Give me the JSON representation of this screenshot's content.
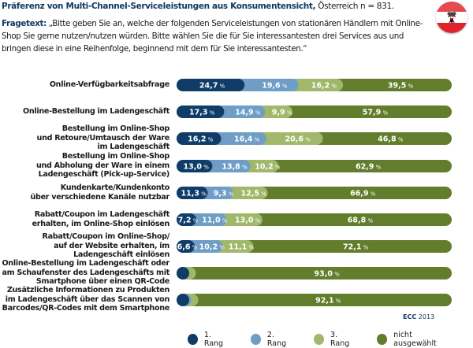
{
  "header": {
    "title_bold": "Präferenz von Multi-Channel-Serviceleistungen aus Konsumentensicht,",
    "title_normal": "Österreich n = 831.",
    "question_label": "Fragetext:",
    "question_text": "„Bitte geben Sie an, welche der folgenden Serviceleistungen von stationären Händlern mit Online-Shop Sie gerne nutzen/nutzen würden. Bitte wählen Sie die für Sie interessantesten drei Services aus und bringen diese in eine Reihenfolge, beginnend mit dem für Sie interessantesten.“",
    "flag_icon": "austria-flag-icon"
  },
  "source": {
    "bold": "ECC",
    "year": "2013"
  },
  "colors": {
    "rang1": "#0f3d68",
    "rang2": "#6f9dc6",
    "rang3": "#a1b86a",
    "nicht": "#627d2c"
  },
  "chart_data": {
    "type": "bar",
    "orientation": "horizontal-stacked-100",
    "title": "Präferenz von Multi-Channel-Serviceleistungen aus Konsumentensicht, Österreich n = 831.",
    "unit": "%",
    "xlim": [
      0,
      100
    ],
    "legend_position": "bottom",
    "categories": [
      "Online-Verfügbarkeitsabfrage",
      "Online-Bestellung im Ladengeschäft",
      "Bestellung im Online-Shop und Retoure/Umtausch der Ware im Ladengeschäft",
      "Bestellung im Online-Shop und Abholung der Ware in einem Ladengeschäft (Pick-up-Service)",
      "Kundenkarte/Kundenkonto über verschiedene Kanäle nutzbar",
      "Rabatt/Coupon im Ladengeschäft erhalten, im Online-Shop einlösen",
      "Rabatt/Coupon im Online-Shop/ auf der Website erhalten, im Ladengeschäft einlösen",
      "Online-Bestellung im Ladengeschäft oder am Schaufenster des Ladengeschäfts mit Smartphone über einen QR-Code",
      "Zusätzliche Informationen zu Produkten im Ladengeschäft über das Scannen von Barcodes/QR-Codes mit dem Smartphone"
    ],
    "category_lines": [
      [
        "Online-Verfügbarkeitsabfrage"
      ],
      [
        "Online-Bestellung im Ladengeschäft"
      ],
      [
        "Bestellung im Online-Shop",
        "und Retoure/Umtausch der Ware",
        "im Ladengeschäft"
      ],
      [
        "Bestellung im Online-Shop",
        "und Abholung der Ware in einem",
        "Ladengeschäft (Pick-up-Service)"
      ],
      [
        "Kundenkarte/Kundenkonto",
        "über verschiedene Kanäle nutzbar"
      ],
      [
        "Rabatt/Coupon im Ladengeschäft",
        "erhalten, im Online-Shop einlösen"
      ],
      [
        "Rabatt/Coupon im Online-Shop/",
        "auf der Website erhalten, im",
        "Ladengeschäft einlösen"
      ],
      [
        "Online-Bestellung im Ladengeschäft oder",
        "am Schaufenster des Ladengeschäfts mit",
        "Smartphone über einen QR-Code"
      ],
      [
        "Zusätzliche Informationen zu Produkten",
        "im Ladengeschäft über das Scannen von",
        "Barcodes/QR-Codes mit dem Smartphone"
      ]
    ],
    "series": [
      {
        "name": "1. Rang",
        "color_key": "rang1",
        "values": [
          24.7,
          17.3,
          16.2,
          13.0,
          11.3,
          7.2,
          6.6,
          2.3,
          2.6
        ],
        "labeled": [
          true,
          true,
          true,
          true,
          true,
          true,
          true,
          false,
          false
        ]
      },
      {
        "name": "2. Rang",
        "color_key": "rang2",
        "values": [
          19.6,
          14.9,
          16.4,
          13.8,
          9.3,
          11.0,
          10.2,
          2.2,
          2.7
        ],
        "labeled": [
          true,
          true,
          true,
          true,
          true,
          true,
          true,
          false,
          false
        ]
      },
      {
        "name": "3. Rang",
        "color_key": "rang3",
        "values": [
          16.2,
          9.9,
          20.6,
          10.2,
          12.5,
          13.0,
          11.1,
          2.5,
          2.6
        ],
        "labeled": [
          true,
          true,
          true,
          true,
          true,
          true,
          true,
          false,
          false
        ]
      },
      {
        "name": "nicht ausgewählt",
        "color_key": "nicht",
        "values": [
          39.5,
          57.9,
          46.8,
          62.9,
          66.9,
          68.8,
          72.1,
          93.0,
          92.1
        ],
        "labeled": [
          true,
          true,
          true,
          true,
          true,
          true,
          true,
          true,
          true
        ]
      }
    ],
    "value_format": "comma-decimal"
  },
  "legend": [
    {
      "label": "1. Rang",
      "color_key": "rang1"
    },
    {
      "label": "2. Rang",
      "color_key": "rang2"
    },
    {
      "label": "3. Rang",
      "color_key": "rang3"
    },
    {
      "label": "nicht ausgewählt",
      "color_key": "nicht"
    }
  ]
}
